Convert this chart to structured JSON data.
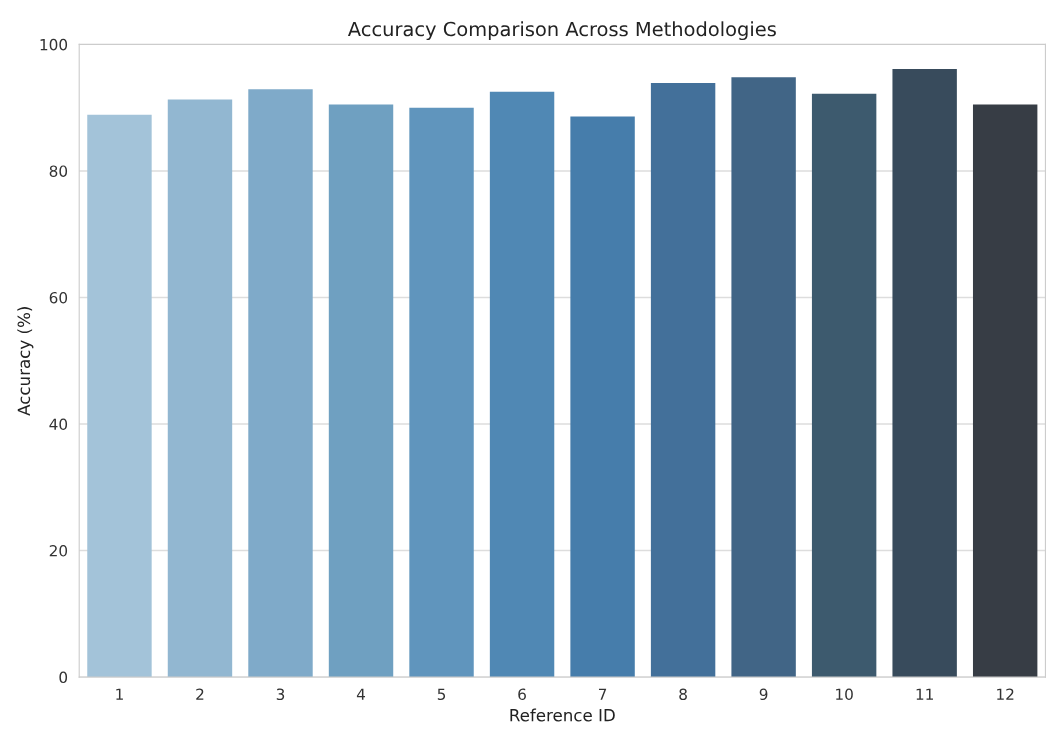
{
  "chart_data": {
    "type": "bar",
    "title": "Accuracy Comparison Across Methodologies",
    "xlabel": "Reference ID",
    "ylabel": "Accuracy (%)",
    "categories": [
      "1",
      "2",
      "3",
      "4",
      "5",
      "6",
      "7",
      "8",
      "9",
      "10",
      "11",
      "12"
    ],
    "values": [
      88.9,
      91.3,
      92.9,
      90.5,
      90.0,
      92.5,
      88.6,
      93.9,
      94.8,
      92.2,
      96.1,
      90.5
    ],
    "colors": [
      "#a3c3d9",
      "#92b7d1",
      "#7faac9",
      "#6fa0c1",
      "#6095bd",
      "#5088b4",
      "#467dab",
      "#43709a",
      "#416586",
      "#3d5a6e",
      "#384b5c",
      "#373d45"
    ],
    "ylim": [
      0,
      100
    ],
    "yticks": [
      0,
      20,
      40,
      60,
      80,
      100
    ],
    "grid": "y"
  }
}
